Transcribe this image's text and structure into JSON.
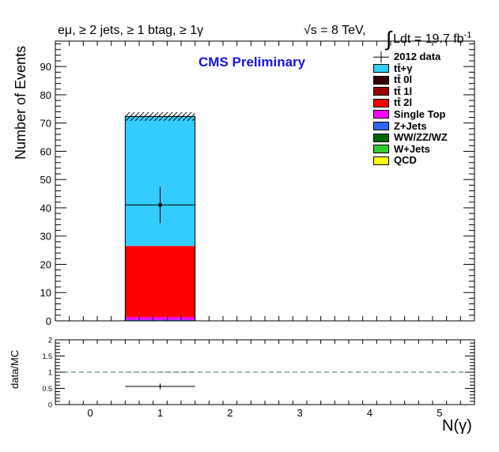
{
  "header": {
    "selection": "eμ, ≥ 2 jets, ≥ 1 btag, ≥ 1γ",
    "energy": "√s = 8 TeV,",
    "lumi_text": "Ldt = 19.7 fb",
    "lumi_exp": "-1",
    "integral_symbol": "∫"
  },
  "cms_label": "CMS Preliminary",
  "colors": {
    "cms_label": "#1414dc",
    "dashed_line": "#2a6e6e"
  },
  "chart_data": [
    {
      "type": "bar",
      "stacked": true,
      "ylabel": "Number of Events",
      "xlabel": "N(γ)",
      "xlim": [
        -0.5,
        5.5
      ],
      "ylim": [
        0,
        99
      ],
      "x_ticks": [
        0,
        1,
        2,
        3,
        4,
        5
      ],
      "y_ticks": [
        0,
        10,
        20,
        30,
        40,
        50,
        60,
        70,
        80,
        90
      ],
      "bins": [
        {
          "low": 0.5,
          "high": 1.5
        }
      ],
      "series": [
        {
          "name": "tt̄+γ",
          "color": "#33ccff",
          "values": [
            45.8
          ]
        },
        {
          "name": "tt̄ 0l",
          "color": "#330000",
          "values": [
            0
          ]
        },
        {
          "name": "tt̄ 1l",
          "color": "#990000",
          "values": [
            0
          ]
        },
        {
          "name": "tt̄ 2l",
          "color": "#ff0000",
          "values": [
            25.2
          ]
        },
        {
          "name": "Single Top",
          "color": "#ff00ff",
          "values": [
            0.9
          ]
        },
        {
          "name": "Z+Jets",
          "color": "#3366ff",
          "values": [
            0.4
          ]
        },
        {
          "name": "WW/ZZ/WZ",
          "color": "#006600",
          "values": [
            0
          ]
        },
        {
          "name": "W+Jets",
          "color": "#33cc33",
          "values": [
            0
          ]
        },
        {
          "name": "QCD",
          "color": "#ffff00",
          "values": [
            0
          ]
        }
      ],
      "stack_total": [
        72.3
      ],
      "stack_uncertainty": [
        1.5
      ],
      "data": {
        "name": "2012 data",
        "x": [
          1
        ],
        "y": [
          41
        ],
        "yerr": [
          6.4
        ],
        "xerr": [
          0.5
        ]
      },
      "legend_position": "top-right"
    },
    {
      "type": "scatter",
      "ylabel": "data/MC",
      "xlabel": "N(γ)",
      "xlim": [
        -0.5,
        5.5
      ],
      "ylim": [
        0,
        2
      ],
      "x_ticks": [
        0,
        1,
        2,
        3,
        4,
        5
      ],
      "y_ticks": [
        0,
        0.5,
        1,
        1.5,
        2
      ],
      "reference_line": 1,
      "uncertainty_band": [
        {
          "low": 0.5,
          "high": 1.5,
          "ylow": 0.98,
          "yhigh": 1.02
        }
      ],
      "points": [
        {
          "x": 1,
          "y": 0.56,
          "xerr": 0.5,
          "yerr": 0.09
        }
      ]
    }
  ]
}
